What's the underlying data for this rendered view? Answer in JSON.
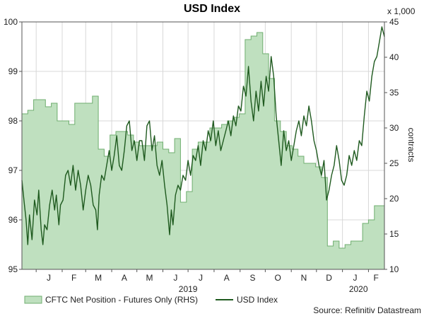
{
  "chart_data": {
    "type": "line",
    "title": "USD Index",
    "source": "Source: Refinitiv Datastream",
    "left_axis": {
      "range": [
        95,
        100
      ],
      "ticks": [
        "95",
        "96",
        "97",
        "98",
        "99",
        "100"
      ]
    },
    "right_axis": {
      "range": [
        10,
        45
      ],
      "ticks": [
        "10",
        "15",
        "20",
        "25",
        "30",
        "35",
        "40",
        "45"
      ],
      "multiplier_label": "x 1,000",
      "label": "contracts"
    },
    "x_axis": {
      "start": "2018-12-15",
      "end": "2020-02-20",
      "month_labels": [
        {
          "label": "J",
          "date": "2019-01-16"
        },
        {
          "label": "F",
          "date": "2019-02-15"
        },
        {
          "label": "M",
          "date": "2019-03-16"
        },
        {
          "label": "A",
          "date": "2019-04-16"
        },
        {
          "label": "M",
          "date": "2019-05-16"
        },
        {
          "label": "J",
          "date": "2019-06-16"
        },
        {
          "label": "J",
          "date": "2019-07-16"
        },
        {
          "label": "A",
          "date": "2019-08-16"
        },
        {
          "label": "S",
          "date": "2019-09-16"
        },
        {
          "label": "O",
          "date": "2019-10-16"
        },
        {
          "label": "N",
          "date": "2019-11-16"
        },
        {
          "label": "D",
          "date": "2019-12-16"
        },
        {
          "label": "J",
          "date": "2020-01-16"
        },
        {
          "label": "F",
          "date": "2020-02-10"
        }
      ],
      "month_boundaries": [
        "2019-01-01",
        "2019-02-01",
        "2019-03-01",
        "2019-04-01",
        "2019-05-01",
        "2019-06-01",
        "2019-07-01",
        "2019-08-01",
        "2019-09-01",
        "2019-10-01",
        "2019-11-01",
        "2019-12-01",
        "2020-01-01",
        "2020-02-01"
      ],
      "year_labels": [
        {
          "label": "2019",
          "date": "2019-07-01"
        },
        {
          "label": "2020",
          "date": "2020-01-20"
        }
      ]
    },
    "grid": true,
    "legend_position": "bottom",
    "series": [
      {
        "name": "CFTC Net Position - Futures Only (RHS)",
        "type": "step-area",
        "axis": "right",
        "color": "#bfe0bf",
        "edge_color": "#6fae6f",
        "points": [
          [
            "2018-12-15",
            32.0
          ],
          [
            "2018-12-22",
            32.5
          ],
          [
            "2018-12-29",
            34.0
          ],
          [
            "2019-01-05",
            34.0
          ],
          [
            "2019-01-12",
            33.0
          ],
          [
            "2019-01-19",
            33.5
          ],
          [
            "2019-01-26",
            31.0
          ],
          [
            "2019-02-02",
            31.0
          ],
          [
            "2019-02-09",
            30.5
          ],
          [
            "2019-02-16",
            33.5
          ],
          [
            "2019-02-23",
            33.5
          ],
          [
            "2019-03-02",
            33.5
          ],
          [
            "2019-03-09",
            34.5
          ],
          [
            "2019-03-16",
            27.0
          ],
          [
            "2019-03-23",
            26.0
          ],
          [
            "2019-03-30",
            29.0
          ],
          [
            "2019-04-06",
            29.5
          ],
          [
            "2019-04-13",
            29.5
          ],
          [
            "2019-04-20",
            29.0
          ],
          [
            "2019-04-27",
            28.0
          ],
          [
            "2019-05-04",
            27.5
          ],
          [
            "2019-05-11",
            27.5
          ],
          [
            "2019-05-18",
            27.5
          ],
          [
            "2019-05-25",
            28.0
          ],
          [
            "2019-06-01",
            27.0
          ],
          [
            "2019-06-08",
            26.5
          ],
          [
            "2019-06-15",
            28.5
          ],
          [
            "2019-06-22",
            19.5
          ],
          [
            "2019-06-29",
            21.0
          ],
          [
            "2019-07-06",
            27.0
          ],
          [
            "2019-07-13",
            28.0
          ],
          [
            "2019-07-20",
            28.0
          ],
          [
            "2019-07-27",
            30.0
          ],
          [
            "2019-08-03",
            30.0
          ],
          [
            "2019-08-10",
            30.5
          ],
          [
            "2019-08-17",
            31.0
          ],
          [
            "2019-08-24",
            31.5
          ],
          [
            "2019-08-31",
            32.0
          ],
          [
            "2019-09-07",
            42.5
          ],
          [
            "2019-09-14",
            43.0
          ],
          [
            "2019-09-21",
            43.5
          ],
          [
            "2019-09-28",
            40.5
          ],
          [
            "2019-10-05",
            37.0
          ],
          [
            "2019-10-12",
            31.0
          ],
          [
            "2019-10-19",
            29.5
          ],
          [
            "2019-10-26",
            27.5
          ],
          [
            "2019-11-02",
            27.0
          ],
          [
            "2019-11-09",
            26.0
          ],
          [
            "2019-11-16",
            25.0
          ],
          [
            "2019-11-23",
            25.0
          ],
          [
            "2019-11-30",
            24.5
          ],
          [
            "2019-12-07",
            23.0
          ],
          [
            "2019-12-14",
            13.3
          ],
          [
            "2019-12-21",
            14.0
          ],
          [
            "2019-12-28",
            13.0
          ],
          [
            "2020-01-04",
            13.5
          ],
          [
            "2020-01-11",
            14.0
          ],
          [
            "2020-01-18",
            14.0
          ],
          [
            "2020-01-25",
            16.5
          ],
          [
            "2020-02-01",
            17.0
          ],
          [
            "2020-02-08",
            19.0
          ],
          [
            "2020-02-20",
            19.0
          ]
        ]
      },
      {
        "name": "USD Index",
        "type": "line",
        "axis": "left",
        "color": "#1f5a1f",
        "points": [
          [
            "2018-12-15",
            96.8
          ],
          [
            "2018-12-18",
            96.3
          ],
          [
            "2018-12-20",
            96.0
          ],
          [
            "2018-12-22",
            95.5
          ],
          [
            "2018-12-24",
            96.1
          ],
          [
            "2018-12-27",
            95.6
          ],
          [
            "2018-12-30",
            96.4
          ],
          [
            "2019-01-02",
            96.1
          ],
          [
            "2019-01-04",
            96.6
          ],
          [
            "2019-01-07",
            95.8
          ],
          [
            "2019-01-09",
            95.5
          ],
          [
            "2019-01-11",
            95.9
          ],
          [
            "2019-01-14",
            95.8
          ],
          [
            "2019-01-17",
            96.3
          ],
          [
            "2019-01-20",
            96.6
          ],
          [
            "2019-01-23",
            96.2
          ],
          [
            "2019-01-25",
            96.5
          ],
          [
            "2019-01-28",
            95.9
          ],
          [
            "2019-01-30",
            96.3
          ],
          [
            "2019-02-02",
            96.4
          ],
          [
            "2019-02-05",
            96.9
          ],
          [
            "2019-02-08",
            97.0
          ],
          [
            "2019-02-11",
            96.7
          ],
          [
            "2019-02-14",
            97.1
          ],
          [
            "2019-02-17",
            96.6
          ],
          [
            "2019-02-20",
            97.0
          ],
          [
            "2019-02-23",
            96.7
          ],
          [
            "2019-02-26",
            96.2
          ],
          [
            "2019-03-01",
            96.6
          ],
          [
            "2019-03-04",
            96.9
          ],
          [
            "2019-03-07",
            96.7
          ],
          [
            "2019-03-10",
            96.3
          ],
          [
            "2019-03-13",
            96.2
          ],
          [
            "2019-03-15",
            95.8
          ],
          [
            "2019-03-17",
            96.5
          ],
          [
            "2019-03-20",
            96.9
          ],
          [
            "2019-03-23",
            96.8
          ],
          [
            "2019-03-26",
            97.1
          ],
          [
            "2019-03-29",
            97.4
          ],
          [
            "2019-04-01",
            97.0
          ],
          [
            "2019-04-04",
            97.3
          ],
          [
            "2019-04-07",
            97.7
          ],
          [
            "2019-04-10",
            97.1
          ],
          [
            "2019-04-13",
            97.0
          ],
          [
            "2019-04-16",
            97.4
          ],
          [
            "2019-04-19",
            97.9
          ],
          [
            "2019-04-22",
            98.0
          ],
          [
            "2019-04-25",
            97.4
          ],
          [
            "2019-04-28",
            97.6
          ],
          [
            "2019-05-01",
            97.2
          ],
          [
            "2019-05-04",
            97.6
          ],
          [
            "2019-05-07",
            97.6
          ],
          [
            "2019-05-10",
            97.2
          ],
          [
            "2019-05-13",
            97.9
          ],
          [
            "2019-05-16",
            98.0
          ],
          [
            "2019-05-19",
            97.4
          ],
          [
            "2019-05-22",
            97.7
          ],
          [
            "2019-05-25",
            97.1
          ],
          [
            "2019-05-28",
            96.9
          ],
          [
            "2019-05-31",
            97.2
          ],
          [
            "2019-06-03",
            96.7
          ],
          [
            "2019-06-06",
            96.3
          ],
          [
            "2019-06-09",
            95.7
          ],
          [
            "2019-06-11",
            96.2
          ],
          [
            "2019-06-13",
            95.9
          ],
          [
            "2019-06-16",
            96.5
          ],
          [
            "2019-06-19",
            96.7
          ],
          [
            "2019-06-22",
            96.6
          ],
          [
            "2019-06-25",
            96.9
          ],
          [
            "2019-06-28",
            96.8
          ],
          [
            "2019-07-01",
            97.2
          ],
          [
            "2019-07-04",
            96.9
          ],
          [
            "2019-07-07",
            97.3
          ],
          [
            "2019-07-10",
            97.2
          ],
          [
            "2019-07-13",
            97.5
          ],
          [
            "2019-07-16",
            97.1
          ],
          [
            "2019-07-19",
            97.6
          ],
          [
            "2019-07-22",
            97.4
          ],
          [
            "2019-07-25",
            97.8
          ],
          [
            "2019-07-28",
            97.6
          ],
          [
            "2019-07-31",
            98.0
          ],
          [
            "2019-08-03",
            97.5
          ],
          [
            "2019-08-06",
            97.8
          ],
          [
            "2019-08-09",
            97.4
          ],
          [
            "2019-08-12",
            97.6
          ],
          [
            "2019-08-15",
            97.8
          ],
          [
            "2019-08-18",
            98.0
          ],
          [
            "2019-08-21",
            97.7
          ],
          [
            "2019-08-24",
            98.1
          ],
          [
            "2019-08-27",
            97.9
          ],
          [
            "2019-08-30",
            98.3
          ],
          [
            "2019-09-02",
            98.2
          ],
          [
            "2019-09-05",
            98.7
          ],
          [
            "2019-09-08",
            98.5
          ],
          [
            "2019-09-11",
            99.1
          ],
          [
            "2019-09-14",
            98.4
          ],
          [
            "2019-09-17",
            98.0
          ],
          [
            "2019-09-20",
            98.6
          ],
          [
            "2019-09-23",
            98.2
          ],
          [
            "2019-09-26",
            98.8
          ],
          [
            "2019-09-29",
            98.3
          ],
          [
            "2019-10-02",
            98.9
          ],
          [
            "2019-10-05",
            98.6
          ],
          [
            "2019-10-08",
            99.3
          ],
          [
            "2019-10-11",
            98.9
          ],
          [
            "2019-10-14",
            98.1
          ],
          [
            "2019-10-17",
            97.6
          ],
          [
            "2019-10-20",
            97.1
          ],
          [
            "2019-10-23",
            97.8
          ],
          [
            "2019-10-26",
            97.4
          ],
          [
            "2019-10-29",
            97.6
          ],
          [
            "2019-11-01",
            97.2
          ],
          [
            "2019-11-04",
            97.5
          ],
          [
            "2019-11-07",
            97.8
          ],
          [
            "2019-11-10",
            98.0
          ],
          [
            "2019-11-13",
            97.7
          ],
          [
            "2019-11-16",
            98.1
          ],
          [
            "2019-11-19",
            97.9
          ],
          [
            "2019-11-22",
            98.3
          ],
          [
            "2019-11-25",
            98.0
          ],
          [
            "2019-11-28",
            97.6
          ],
          [
            "2019-12-01",
            97.4
          ],
          [
            "2019-12-04",
            97.1
          ],
          [
            "2019-12-07",
            96.9
          ],
          [
            "2019-12-10",
            97.2
          ],
          [
            "2019-12-13",
            96.4
          ],
          [
            "2019-12-16",
            96.6
          ],
          [
            "2019-12-19",
            96.9
          ],
          [
            "2019-12-22",
            97.1
          ],
          [
            "2019-12-25",
            97.5
          ],
          [
            "2019-12-28",
            97.2
          ],
          [
            "2019-12-31",
            96.8
          ],
          [
            "2020-01-03",
            96.7
          ],
          [
            "2020-01-06",
            96.9
          ],
          [
            "2020-01-09",
            97.3
          ],
          [
            "2020-01-12",
            97.1
          ],
          [
            "2020-01-15",
            97.4
          ],
          [
            "2020-01-18",
            97.2
          ],
          [
            "2020-01-21",
            97.6
          ],
          [
            "2020-01-24",
            97.5
          ],
          [
            "2020-01-27",
            98.1
          ],
          [
            "2020-01-30",
            98.6
          ],
          [
            "2020-02-02",
            98.4
          ],
          [
            "2020-02-05",
            98.9
          ],
          [
            "2020-02-08",
            99.2
          ],
          [
            "2020-02-11",
            99.3
          ],
          [
            "2020-02-14",
            99.6
          ],
          [
            "2020-02-17",
            99.9
          ],
          [
            "2020-02-20",
            99.7
          ]
        ]
      }
    ]
  }
}
